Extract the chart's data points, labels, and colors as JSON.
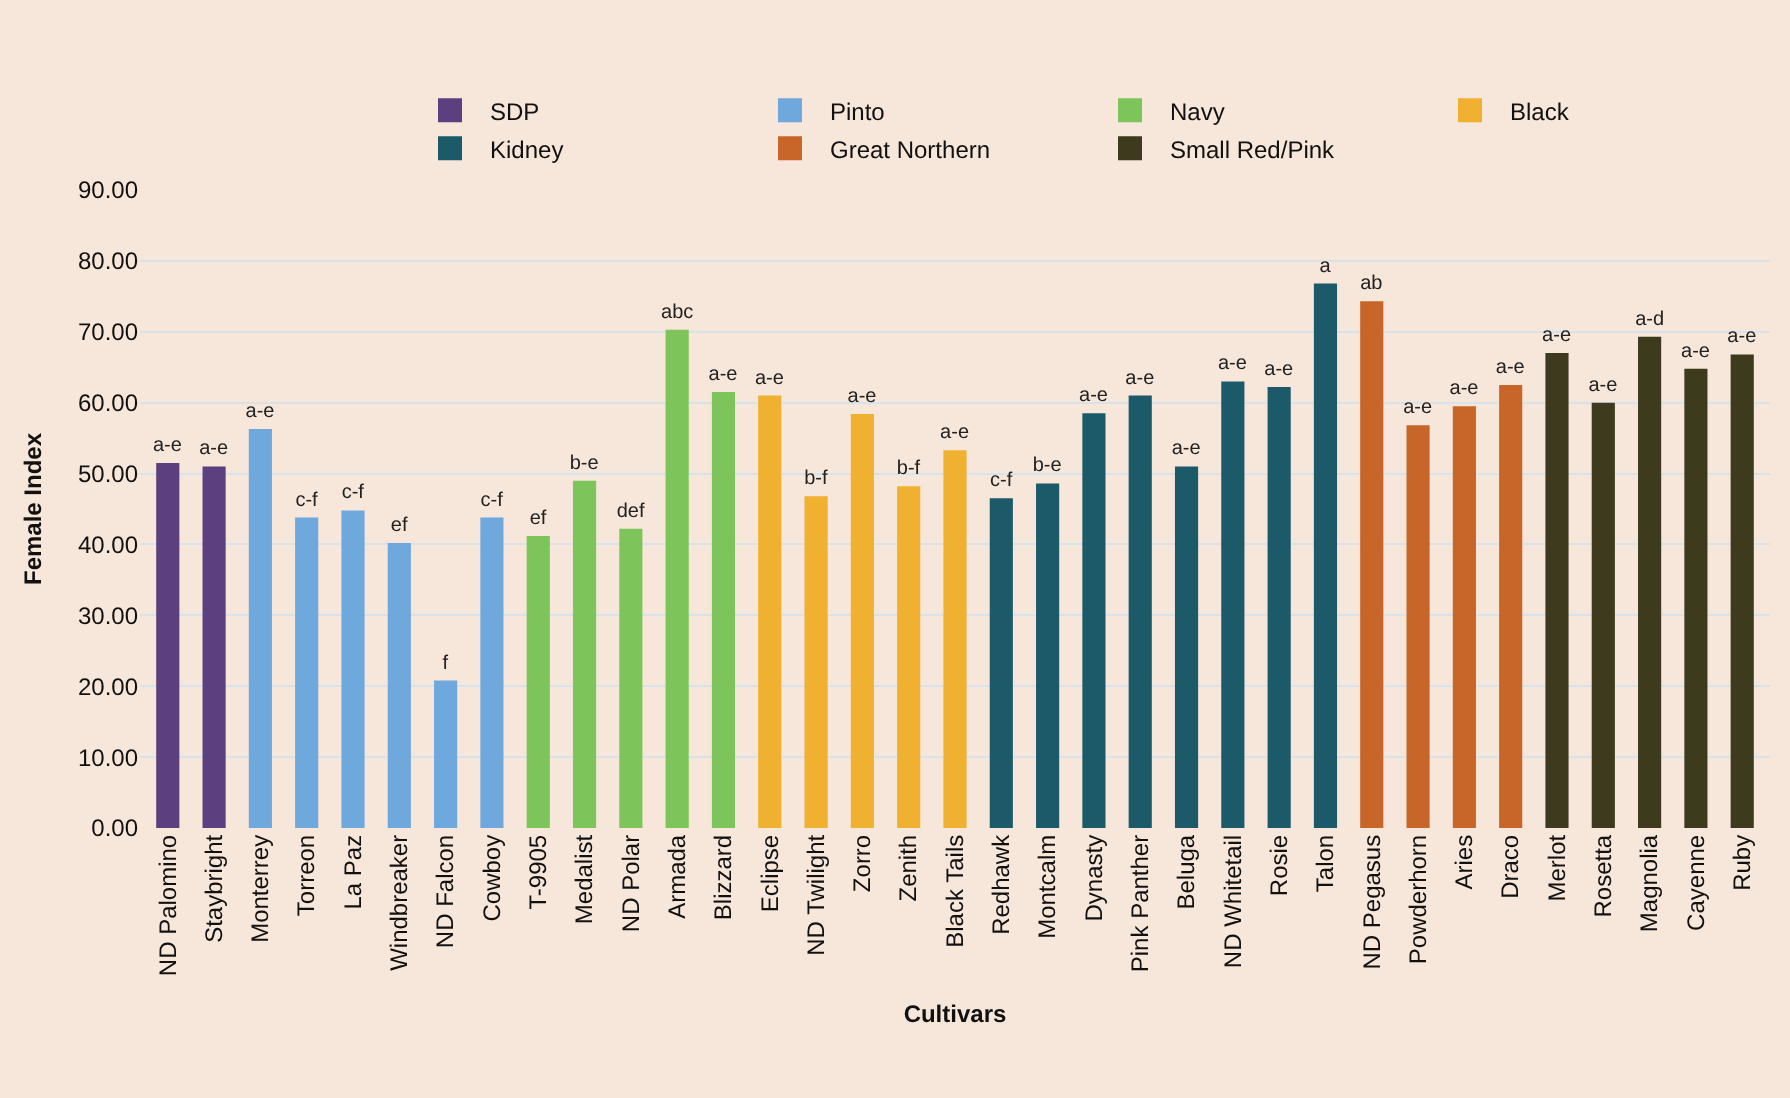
{
  "chart_data": {
    "type": "bar",
    "xlabel": "Cultivars",
    "ylabel": "Female Index",
    "categories": [
      "ND Palomino",
      "Staybright",
      "Monterrey",
      "Torreon",
      "La Paz",
      "Windbreaker",
      "ND Falcon",
      "Cowboy",
      "T-9905",
      "Medalist",
      "ND Polar",
      "Armada",
      "Blizzard",
      "Eclipse",
      "ND Twilight",
      "Zorro",
      "Zenith",
      "Black Tails",
      "Redhawk",
      "Montcalm",
      "Dynasty",
      "Pink Panther",
      "Beluga",
      "ND Whitetail",
      "Rosie",
      "Talon",
      "ND Pegasus",
      "Powderhorn",
      "Aries",
      "Draco",
      "Merlot",
      "Rosetta",
      "Magnolia",
      "Cayenne",
      "Ruby"
    ],
    "series": [
      {
        "name": "SDP",
        "color": "#5b3f7e",
        "values": [
          51.5,
          51.0,
          null,
          null,
          null,
          null,
          null,
          null,
          null,
          null,
          null,
          null,
          null,
          null,
          null,
          null,
          null,
          null,
          null,
          null,
          null,
          null,
          null,
          null,
          null,
          null,
          null,
          null,
          null,
          null,
          null,
          null,
          null,
          null,
          null
        ],
        "value_labels": [
          "a-e",
          "a-e",
          null,
          null,
          null,
          null,
          null,
          null,
          null,
          null,
          null,
          null,
          null,
          null,
          null,
          null,
          null,
          null,
          null,
          null,
          null,
          null,
          null,
          null,
          null,
          null,
          null,
          null,
          null,
          null,
          null,
          null,
          null,
          null,
          null
        ]
      },
      {
        "name": "Pinto",
        "color": "#6fa8dc",
        "values": [
          null,
          null,
          56.3,
          43.8,
          44.8,
          40.2,
          20.8,
          43.8,
          null,
          null,
          null,
          null,
          null,
          null,
          null,
          null,
          null,
          null,
          null,
          null,
          null,
          null,
          null,
          null,
          null,
          null,
          null,
          null,
          null,
          null,
          null,
          null,
          null,
          null,
          null
        ],
        "value_labels": [
          null,
          null,
          "a-e",
          "c-f",
          "c-f",
          "ef",
          "f",
          "c-f",
          null,
          null,
          null,
          null,
          null,
          null,
          null,
          null,
          null,
          null,
          null,
          null,
          null,
          null,
          null,
          null,
          null,
          null,
          null,
          null,
          null,
          null,
          null,
          null,
          null,
          null,
          null
        ]
      },
      {
        "name": "Navy",
        "color": "#7dc45a",
        "values": [
          null,
          null,
          null,
          null,
          null,
          null,
          null,
          null,
          41.2,
          49.0,
          42.2,
          70.3,
          61.5,
          null,
          null,
          null,
          null,
          null,
          null,
          null,
          null,
          null,
          null,
          null,
          null,
          null,
          null,
          null,
          null,
          null,
          null,
          null,
          null,
          null,
          null
        ],
        "value_labels": [
          null,
          null,
          null,
          null,
          null,
          null,
          null,
          null,
          "ef",
          "b-e",
          "def",
          "abc",
          "a-e",
          null,
          null,
          null,
          null,
          null,
          null,
          null,
          null,
          null,
          null,
          null,
          null,
          null,
          null,
          null,
          null,
          null,
          null,
          null,
          null,
          null,
          null
        ]
      },
      {
        "name": "Black",
        "color": "#f0b030",
        "values": [
          null,
          null,
          null,
          null,
          null,
          null,
          null,
          null,
          null,
          null,
          null,
          null,
          null,
          61.0,
          46.8,
          58.4,
          48.2,
          53.3,
          null,
          null,
          null,
          null,
          null,
          null,
          null,
          null,
          null,
          null,
          null,
          null,
          null,
          null,
          null,
          null,
          null
        ],
        "value_labels": [
          null,
          null,
          null,
          null,
          null,
          null,
          null,
          null,
          null,
          null,
          null,
          null,
          null,
          "a-e",
          "b-f",
          "a-e",
          "b-f",
          "a-e",
          null,
          null,
          null,
          null,
          null,
          null,
          null,
          null,
          null,
          null,
          null,
          null,
          null,
          null,
          null,
          null,
          null
        ]
      },
      {
        "name": "Kidney",
        "color": "#1c5a6a",
        "values": [
          null,
          null,
          null,
          null,
          null,
          null,
          null,
          null,
          null,
          null,
          null,
          null,
          null,
          null,
          null,
          null,
          null,
          null,
          46.5,
          48.6,
          58.5,
          61.0,
          51.0,
          63.0,
          62.2,
          76.8,
          null,
          null,
          null,
          null,
          null,
          null,
          null,
          null,
          null
        ],
        "value_labels": [
          null,
          null,
          null,
          null,
          null,
          null,
          null,
          null,
          null,
          null,
          null,
          null,
          null,
          null,
          null,
          null,
          null,
          null,
          "c-f",
          "b-e",
          "a-e",
          "a-e",
          "a-e",
          "a-e",
          "a-e",
          "a",
          null,
          null,
          null,
          null,
          null,
          null,
          null,
          null,
          null
        ]
      },
      {
        "name": "Great Northern",
        "color": "#c8662a",
        "values": [
          null,
          null,
          null,
          null,
          null,
          null,
          null,
          null,
          null,
          null,
          null,
          null,
          null,
          null,
          null,
          null,
          null,
          null,
          null,
          null,
          null,
          null,
          null,
          null,
          null,
          null,
          74.3,
          56.8,
          59.5,
          62.5,
          null,
          null,
          null,
          null,
          null
        ],
        "value_labels": [
          null,
          null,
          null,
          null,
          null,
          null,
          null,
          null,
          null,
          null,
          null,
          null,
          null,
          null,
          null,
          null,
          null,
          null,
          null,
          null,
          null,
          null,
          null,
          null,
          null,
          null,
          "ab",
          "a-e",
          "a-e",
          "a-e",
          null,
          null,
          null,
          null,
          null
        ]
      },
      {
        "name": "Small Red/Pink",
        "color": "#3d3a1e",
        "values": [
          null,
          null,
          null,
          null,
          null,
          null,
          null,
          null,
          null,
          null,
          null,
          null,
          null,
          null,
          null,
          null,
          null,
          null,
          null,
          null,
          null,
          null,
          null,
          null,
          null,
          null,
          null,
          null,
          null,
          null,
          67.0,
          60.0,
          69.3,
          64.8,
          66.8
        ],
        "value_labels": [
          null,
          null,
          null,
          null,
          null,
          null,
          null,
          null,
          null,
          null,
          null,
          null,
          null,
          null,
          null,
          null,
          null,
          null,
          null,
          null,
          null,
          null,
          null,
          null,
          null,
          null,
          null,
          null,
          null,
          null,
          "a-e",
          "a-e",
          "a-d",
          "a-e",
          "a-e"
        ]
      }
    ],
    "ylim": [
      0,
      90
    ],
    "yticks": [
      {
        "value": 0,
        "label": "0.00"
      },
      {
        "value": 10,
        "label": "10.00"
      },
      {
        "value": 20,
        "label": "20.00"
      },
      {
        "value": 30,
        "label": "30.00"
      },
      {
        "value": 40,
        "label": "40.00"
      },
      {
        "value": 50,
        "label": "50.00"
      },
      {
        "value": 60,
        "label": "60.00"
      },
      {
        "value": 70,
        "label": "70.00"
      },
      {
        "value": 80,
        "label": "80.00"
      },
      {
        "value": 90,
        "label": "90.00"
      }
    ],
    "grid": "y",
    "legend": "top right"
  }
}
